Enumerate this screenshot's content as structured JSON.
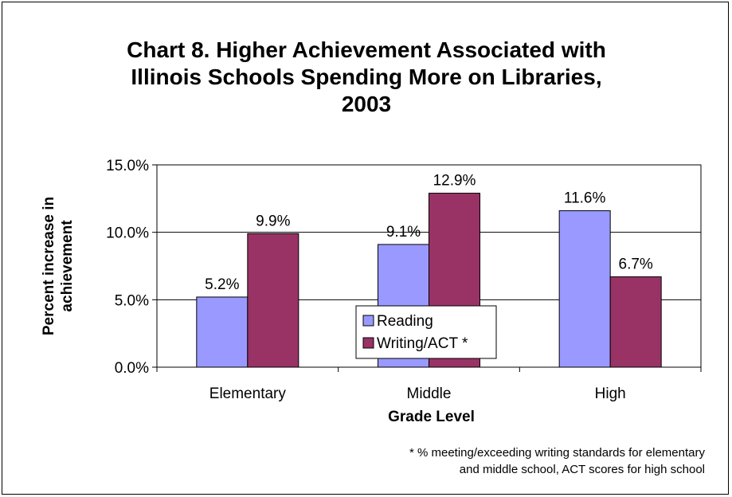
{
  "chart_data": {
    "type": "bar",
    "title_lines": [
      "Chart 8. Higher Achievement Associated with",
      "Illinois Schools Spending More on Libraries,",
      "2003"
    ],
    "categories": [
      "Elementary",
      "Middle",
      "High"
    ],
    "series": [
      {
        "name": "Reading",
        "values": [
          5.2,
          9.1,
          11.6
        ],
        "labels": [
          "5.2%",
          "9.1%",
          "11.6%"
        ],
        "color": "#9999FF"
      },
      {
        "name": "Writing/ACT *",
        "values": [
          9.9,
          12.9,
          6.7
        ],
        "labels": [
          "9.9%",
          "12.9%",
          "6.7%"
        ],
        "color": "#993366"
      }
    ],
    "xlabel": "Grade Level",
    "ylabel_lines": [
      "Percent increase in",
      "achievement"
    ],
    "ylim": [
      0,
      15
    ],
    "yticks": [
      0,
      5,
      10,
      15
    ],
    "ytick_labels": [
      "0.0%",
      "5.0%",
      "10.0%",
      "15.0%"
    ],
    "gridlines": true,
    "legend_position": "center",
    "footnote_lines": [
      "* % meeting/exceeding writing standards for elementary",
      "and middle school, ACT scores for high school"
    ]
  }
}
